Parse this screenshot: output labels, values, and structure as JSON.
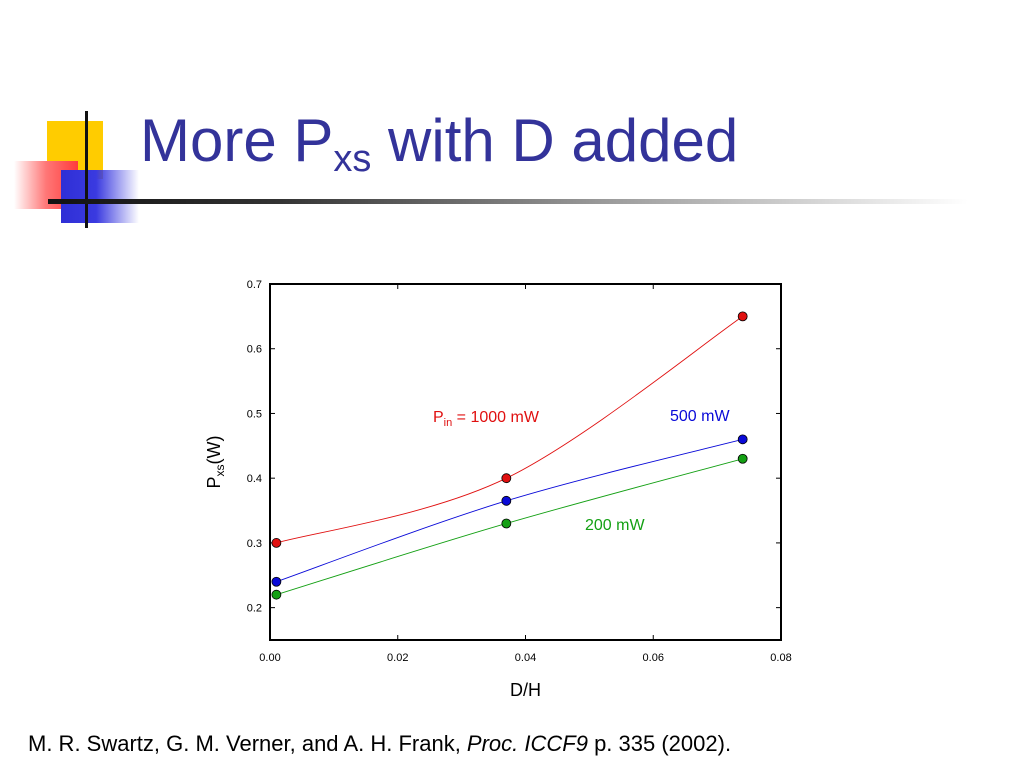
{
  "slide": {
    "title_main": "More P",
    "title_sub": "xs",
    "title_rest": " with D added"
  },
  "citation": {
    "authors": "M. R. Swartz, G. M. Verner, and A. H. Frank, ",
    "journal": "Proc. ICCF9",
    "details": " p. 335 (2002)."
  },
  "colors": {
    "title": "#33339a",
    "series_1000": "#e01010",
    "series_500": "#0a0ad8",
    "series_200": "#14a014"
  },
  "chart_data": {
    "type": "line",
    "xlabel": "D/H",
    "ylabel_main": "P",
    "ylabel_sub": "xs",
    "ylabel_rest": "(W)",
    "xlim": [
      0.0,
      0.08
    ],
    "ylim": [
      0.15,
      0.7
    ],
    "xticks": [
      "0.00",
      "0.02",
      "0.04",
      "0.06",
      "0.08"
    ],
    "yticks": [
      "0.2",
      "0.3",
      "0.4",
      "0.5",
      "0.6",
      "0.7"
    ],
    "grid": false,
    "series": [
      {
        "label_main": "P",
        "label_sub": "in",
        "label_rest": " = 1000 mW",
        "color": "#e01010",
        "points": [
          [
            0.001,
            0.3
          ],
          [
            0.037,
            0.4
          ],
          [
            0.074,
            0.65
          ]
        ]
      },
      {
        "label_main": "500 mW",
        "color": "#0a0ad8",
        "points": [
          [
            0.001,
            0.24
          ],
          [
            0.037,
            0.365
          ],
          [
            0.074,
            0.46
          ]
        ]
      },
      {
        "label_main": "200 mW",
        "color": "#14a014",
        "points": [
          [
            0.001,
            0.22
          ],
          [
            0.037,
            0.33
          ],
          [
            0.074,
            0.43
          ]
        ]
      }
    ]
  }
}
